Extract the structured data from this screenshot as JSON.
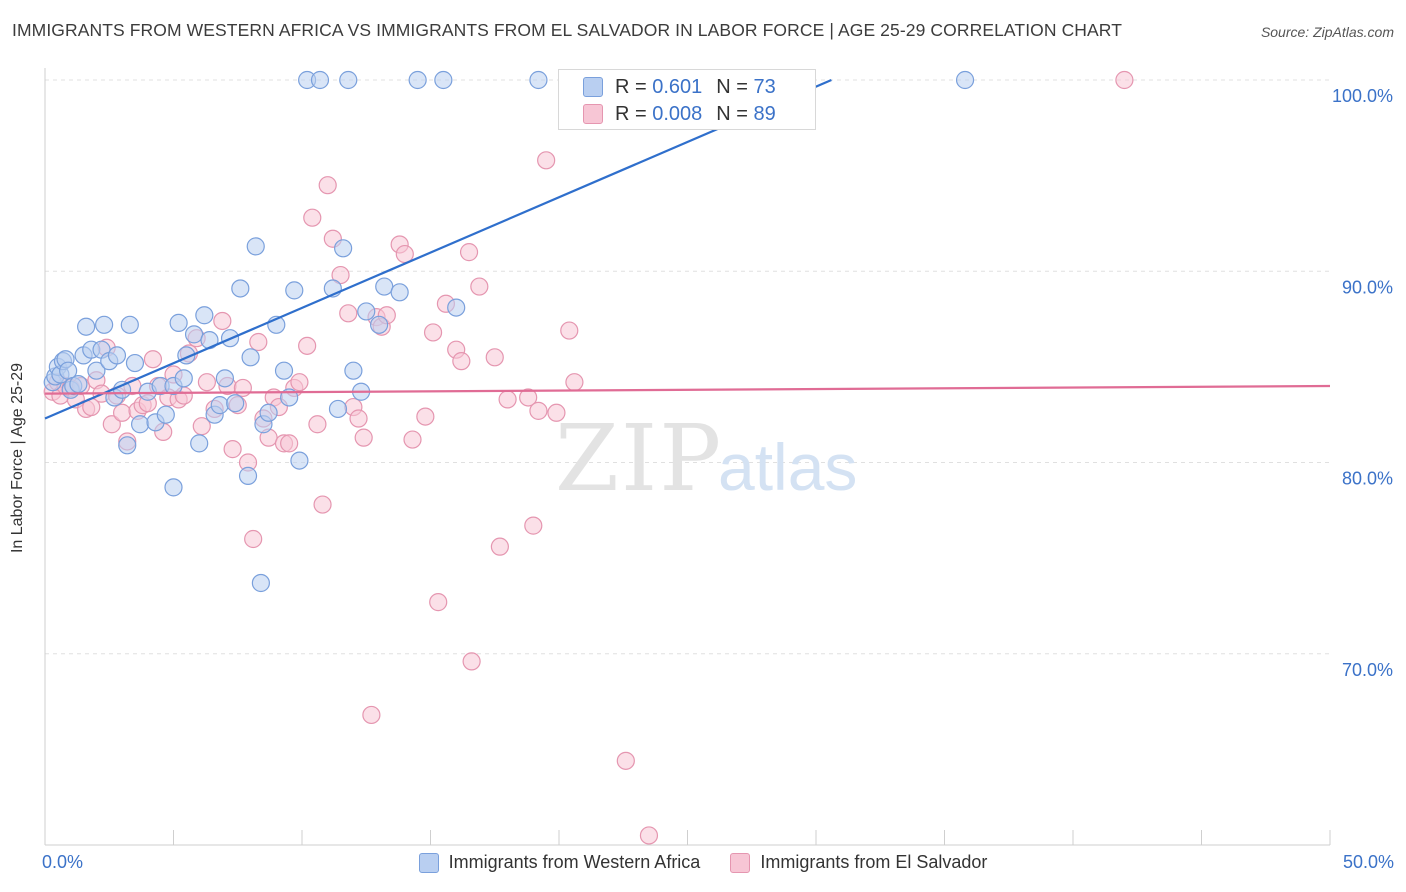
{
  "title": "IMMIGRANTS FROM WESTERN AFRICA VS IMMIGRANTS FROM EL SALVADOR IN LABOR FORCE | AGE 25-29 CORRELATION CHART",
  "source": "Source: ZipAtlas.com",
  "watermark": {
    "zip": "ZIP",
    "atlas": "atlas"
  },
  "legend": {
    "r_label": "R =",
    "n_label": "N =",
    "series": [
      {
        "name": "Immigrants from Western Africa",
        "r": "0.601",
        "n": "73"
      },
      {
        "name": "Immigrants from El Salvador",
        "r": "0.008",
        "n": "89"
      }
    ]
  },
  "colors": {
    "blue_fill": "#b9cff1",
    "blue_stroke": "#7aa0dc",
    "blue_line": "#2f6fcc",
    "pink_fill": "#f7c6d5",
    "pink_stroke": "#e596b0",
    "pink_line": "#e06c95",
    "axis_text": "#3b72c8",
    "grid": "#e0e0e0"
  },
  "chart_data": {
    "type": "scatter",
    "title": "IMMIGRANTS FROM WESTERN AFRICA VS IMMIGRANTS FROM EL SALVADOR IN LABOR FORCE | AGE 25-29 CORRELATION CHART",
    "xlabel": "",
    "ylabel": "In Labor Force | Age 25-29",
    "xlim": [
      0,
      50
    ],
    "ylim": [
      60,
      100
    ],
    "x_tick_labels": [
      "0.0%",
      "50.0%"
    ],
    "y_ticks": [
      70,
      80,
      90,
      100
    ],
    "y_tick_labels": [
      "70.0%",
      "80.0%",
      "90.0%",
      "100.0%"
    ],
    "grid": true,
    "series": [
      {
        "name": "Immigrants from Western Africa",
        "color": "blue",
        "trend": {
          "x": [
            0,
            30.6
          ],
          "y": [
            82.3,
            100.0
          ]
        },
        "points": [
          [
            0.3,
            84.2
          ],
          [
            0.4,
            84.5
          ],
          [
            0.5,
            85.0
          ],
          [
            0.6,
            84.6
          ],
          [
            0.7,
            85.3
          ],
          [
            0.8,
            85.4
          ],
          [
            0.9,
            84.8
          ],
          [
            1.0,
            83.8
          ],
          [
            1.1,
            84.0
          ],
          [
            1.3,
            84.1
          ],
          [
            1.5,
            85.6
          ],
          [
            1.6,
            87.1
          ],
          [
            1.8,
            85.9
          ],
          [
            2.0,
            84.8
          ],
          [
            2.2,
            85.9
          ],
          [
            2.3,
            87.2
          ],
          [
            2.5,
            85.3
          ],
          [
            2.7,
            83.4
          ],
          [
            2.8,
            85.6
          ],
          [
            3.0,
            83.8
          ],
          [
            3.2,
            80.9
          ],
          [
            3.3,
            87.2
          ],
          [
            3.5,
            85.2
          ],
          [
            3.7,
            82.0
          ],
          [
            4.0,
            83.7
          ],
          [
            4.3,
            82.1
          ],
          [
            4.5,
            84.0
          ],
          [
            4.7,
            82.5
          ],
          [
            5.0,
            84.0
          ],
          [
            5.0,
            78.7
          ],
          [
            5.2,
            87.3
          ],
          [
            5.4,
            84.4
          ],
          [
            5.5,
            85.6
          ],
          [
            5.8,
            86.7
          ],
          [
            6.0,
            81.0
          ],
          [
            6.2,
            87.7
          ],
          [
            6.4,
            86.4
          ],
          [
            6.6,
            82.5
          ],
          [
            6.8,
            83.0
          ],
          [
            7.0,
            84.4
          ],
          [
            7.2,
            86.5
          ],
          [
            7.4,
            83.1
          ],
          [
            7.6,
            89.1
          ],
          [
            7.9,
            79.3
          ],
          [
            8.0,
            85.5
          ],
          [
            8.2,
            91.3
          ],
          [
            8.4,
            73.7
          ],
          [
            8.5,
            82.0
          ],
          [
            8.7,
            82.6
          ],
          [
            9.0,
            87.2
          ],
          [
            9.3,
            84.8
          ],
          [
            9.5,
            83.4
          ],
          [
            9.7,
            89.0
          ],
          [
            9.9,
            80.1
          ],
          [
            10.2,
            100
          ],
          [
            10.7,
            100
          ],
          [
            11.2,
            89.1
          ],
          [
            11.4,
            82.8
          ],
          [
            11.6,
            91.2
          ],
          [
            11.8,
            100
          ],
          [
            12.0,
            84.8
          ],
          [
            12.3,
            83.7
          ],
          [
            12.5,
            87.9
          ],
          [
            13.0,
            87.2
          ],
          [
            13.2,
            89.2
          ],
          [
            13.8,
            88.9
          ],
          [
            14.5,
            100
          ],
          [
            15.5,
            100
          ],
          [
            16.0,
            88.1
          ],
          [
            19.2,
            100
          ],
          [
            35.8,
            100
          ]
        ]
      },
      {
        "name": "Immigrants from El Salvador",
        "color": "pink",
        "trend": {
          "x": [
            0,
            50
          ],
          "y": [
            83.6,
            84.0
          ]
        },
        "points": [
          [
            0.3,
            83.7
          ],
          [
            0.5,
            84.2
          ],
          [
            0.6,
            83.5
          ],
          [
            0.8,
            84.0
          ],
          [
            1.0,
            83.9
          ],
          [
            1.2,
            83.3
          ],
          [
            1.4,
            84.0
          ],
          [
            1.6,
            82.8
          ],
          [
            1.8,
            82.9
          ],
          [
            2.0,
            84.3
          ],
          [
            2.2,
            83.6
          ],
          [
            2.4,
            86.0
          ],
          [
            2.6,
            82.0
          ],
          [
            2.8,
            83.5
          ],
          [
            3.0,
            82.6
          ],
          [
            3.2,
            81.1
          ],
          [
            3.4,
            84.0
          ],
          [
            3.6,
            82.7
          ],
          [
            3.8,
            83.0
          ],
          [
            4.0,
            83.1
          ],
          [
            4.2,
            85.4
          ],
          [
            4.4,
            84.0
          ],
          [
            4.6,
            81.6
          ],
          [
            4.8,
            83.4
          ],
          [
            5.0,
            84.6
          ],
          [
            5.2,
            83.3
          ],
          [
            5.4,
            83.5
          ],
          [
            5.6,
            85.7
          ],
          [
            5.9,
            86.5
          ],
          [
            6.1,
            81.9
          ],
          [
            6.3,
            84.2
          ],
          [
            6.6,
            82.8
          ],
          [
            6.9,
            87.4
          ],
          [
            7.1,
            84.0
          ],
          [
            7.3,
            80.7
          ],
          [
            7.5,
            83.0
          ],
          [
            7.7,
            83.9
          ],
          [
            7.9,
            80.0
          ],
          [
            8.1,
            76.0
          ],
          [
            8.3,
            86.3
          ],
          [
            8.5,
            82.3
          ],
          [
            8.7,
            81.3
          ],
          [
            8.9,
            83.4
          ],
          [
            9.1,
            82.9
          ],
          [
            9.3,
            81.0
          ],
          [
            9.5,
            81.0
          ],
          [
            9.7,
            83.9
          ],
          [
            9.9,
            84.2
          ],
          [
            10.2,
            86.1
          ],
          [
            10.4,
            92.8
          ],
          [
            10.6,
            82.0
          ],
          [
            10.8,
            77.8
          ],
          [
            11.0,
            94.5
          ],
          [
            11.2,
            91.7
          ],
          [
            11.5,
            89.8
          ],
          [
            11.8,
            87.8
          ],
          [
            12.0,
            82.9
          ],
          [
            12.2,
            82.3
          ],
          [
            12.4,
            81.3
          ],
          [
            12.7,
            66.8
          ],
          [
            12.9,
            87.6
          ],
          [
            13.1,
            87.1
          ],
          [
            13.3,
            87.7
          ],
          [
            13.8,
            91.4
          ],
          [
            14.0,
            90.9
          ],
          [
            14.3,
            81.2
          ],
          [
            14.8,
            82.4
          ],
          [
            15.1,
            86.8
          ],
          [
            15.3,
            72.7
          ],
          [
            15.6,
            88.3
          ],
          [
            16.0,
            85.9
          ],
          [
            16.2,
            85.3
          ],
          [
            16.6,
            69.6
          ],
          [
            16.5,
            91.0
          ],
          [
            16.9,
            89.2
          ],
          [
            17.5,
            85.5
          ],
          [
            17.7,
            75.6
          ],
          [
            18.0,
            83.3
          ],
          [
            18.8,
            83.4
          ],
          [
            19.0,
            76.7
          ],
          [
            19.2,
            82.7
          ],
          [
            19.5,
            95.8
          ],
          [
            19.9,
            82.6
          ],
          [
            20.4,
            86.9
          ],
          [
            20.6,
            84.2
          ],
          [
            22.6,
            64.4
          ],
          [
            23.5,
            60.5
          ],
          [
            42.0,
            100
          ]
        ]
      }
    ]
  }
}
